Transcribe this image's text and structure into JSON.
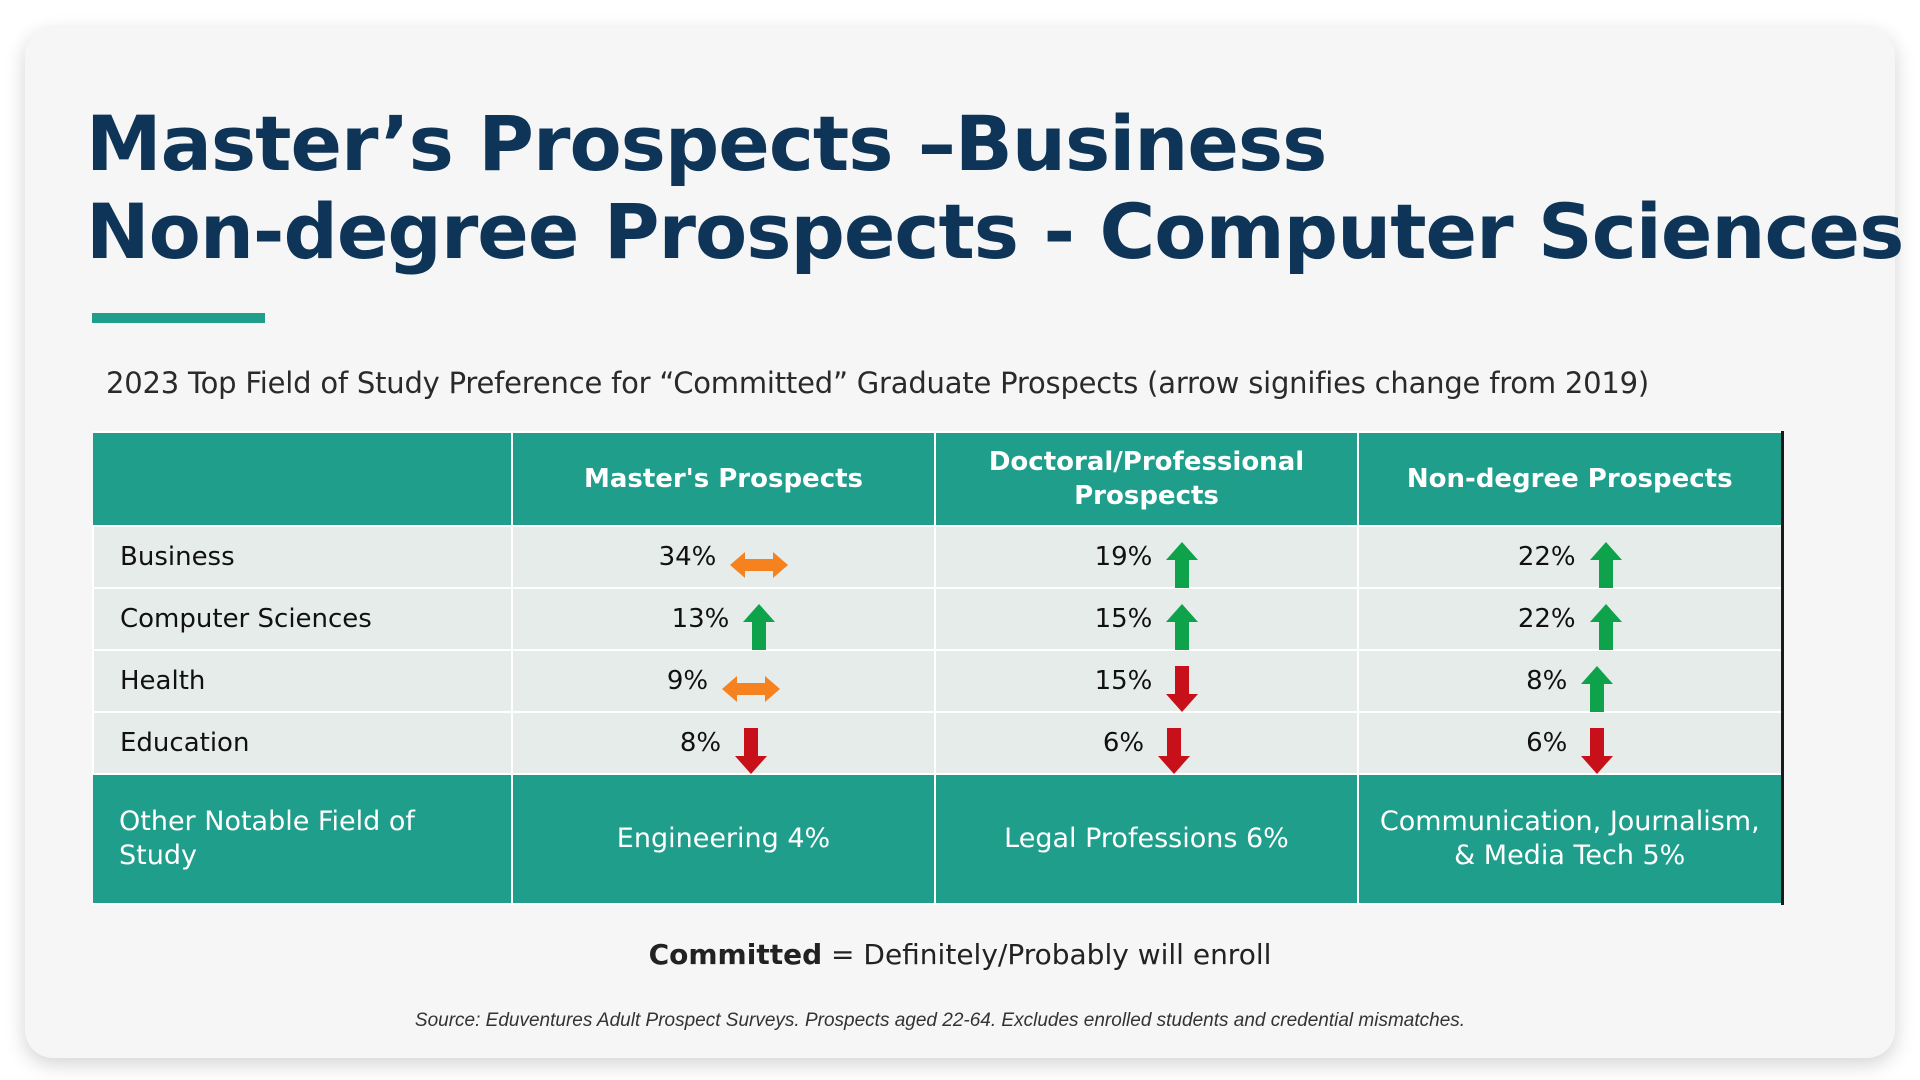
{
  "title": {
    "line1": "Master’s Prospects –Business",
    "line2": "Non-degree Prospects - Computer Sciences"
  },
  "subtitle": "2023 Top Field of Study Preference for “Committed” Graduate Prospects (arrow signifies change from 2019)",
  "table": {
    "headers": [
      "",
      "Master's Prospects",
      "Doctoral/Professional Prospects",
      "Non-degree Prospects"
    ],
    "rows": [
      {
        "label": "Business",
        "cells": [
          {
            "value": "34%",
            "trend": "flat"
          },
          {
            "value": "19%",
            "trend": "up"
          },
          {
            "value": "22%",
            "trend": "up"
          }
        ]
      },
      {
        "label": "Computer Sciences",
        "cells": [
          {
            "value": "13%",
            "trend": "up"
          },
          {
            "value": "15%",
            "trend": "up"
          },
          {
            "value": "22%",
            "trend": "up"
          }
        ]
      },
      {
        "label": "Health",
        "cells": [
          {
            "value": "9%",
            "trend": "flat"
          },
          {
            "value": "15%",
            "trend": "down"
          },
          {
            "value": "8%",
            "trend": "up"
          }
        ]
      },
      {
        "label": "Education",
        "cells": [
          {
            "value": "8%",
            "trend": "down"
          },
          {
            "value": "6%",
            "trend": "down"
          },
          {
            "value": "6%",
            "trend": "down"
          }
        ]
      }
    ],
    "footer": {
      "label": "Other Notable Field of Study",
      "cells": [
        "Engineering 4%",
        "Legal Professions 6%",
        "Communication, Journalism, & Media Tech 5%"
      ]
    }
  },
  "definition": {
    "term": "Committed",
    "text": " = Definitely/Probably will enroll"
  },
  "source": "Source: Eduventures Adult Prospect Surveys. Prospects aged 22-64. Excludes enrolled students and credential mismatches.",
  "colors": {
    "title": "#0e3558",
    "teal": "#1f9e8c",
    "row_bg": "#e6ecea",
    "arrow_up": "#0ea34a",
    "arrow_down": "#c8101a",
    "arrow_flat": "#f5821f"
  },
  "icons": {
    "up": "arrow-up-icon",
    "down": "arrow-down-icon",
    "flat": "arrow-left-right-icon"
  }
}
